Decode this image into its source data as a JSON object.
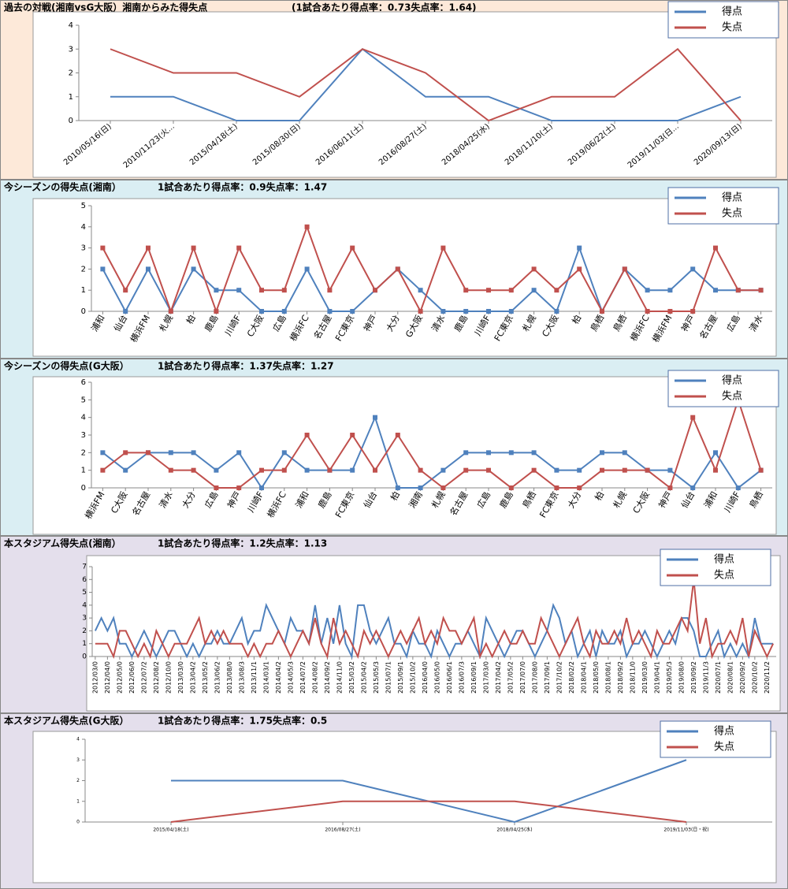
{
  "chart_data": [
    {
      "type": "line",
      "title": "過去の対戦(湘南vsG大阪）湘南からみた得失点",
      "subtitle": "(1試合あたり得点率：0.73失点率：1.64)",
      "categories": [
        "2010/05/16(日)",
        "2010/11/23(火...",
        "2015/04/18(土)",
        "2015/08/30(日)",
        "2016/06/11(土)",
        "2016/08/27(土)",
        "2018/04/25(水)",
        "2018/11/10(土)",
        "2019/06/22(土)",
        "2019/11/03(日...",
        "2020/09/13(日)"
      ],
      "series": [
        {
          "name": "得点",
          "color": "#4f81bd",
          "values": [
            1,
            1,
            0,
            0,
            3,
            1,
            1,
            0,
            0,
            0,
            1
          ]
        },
        {
          "name": "失点",
          "color": "#c0504d",
          "values": [
            3,
            2,
            2,
            1,
            3,
            2,
            0,
            1,
            1,
            3,
            0
          ]
        }
      ],
      "ylim": [
        0,
        4
      ],
      "yticks": [
        0,
        1,
        2,
        3,
        4
      ],
      "grid": false,
      "markers": false,
      "legend": "top-right"
    },
    {
      "type": "line",
      "title": "今シーズンの得失点(湘南）",
      "subtitle": "1試合あたり得点率：0.9失点率：1.47",
      "categories": [
        "浦和",
        "仙台",
        "横浜FM",
        "札幌",
        "柏",
        "鹿島",
        "川崎F",
        "C大阪",
        "広島",
        "横浜FC",
        "名古屋",
        "FC東京",
        "神戸",
        "大分",
        "G大阪",
        "清水",
        "鹿島",
        "川崎F",
        "FC東京",
        "札幌",
        "C大阪",
        "柏",
        "鳥栖",
        "鳥栖",
        "横浜FC",
        "横浜FM",
        "神戸",
        "名古屋",
        "広島",
        "清水"
      ],
      "series": [
        {
          "name": "得点",
          "color": "#4f81bd",
          "values": [
            2,
            0,
            2,
            0,
            2,
            1,
            1,
            0,
            0,
            2,
            0,
            0,
            1,
            2,
            1,
            0,
            0,
            0,
            0,
            1,
            0,
            3,
            0,
            2,
            1,
            1,
            2,
            1,
            1,
            1
          ]
        },
        {
          "name": "失点",
          "color": "#c0504d",
          "values": [
            3,
            1,
            3,
            0,
            3,
            0,
            3,
            1,
            1,
            4,
            1,
            3,
            1,
            2,
            0,
            3,
            1,
            1,
            1,
            2,
            1,
            2,
            0,
            2,
            0,
            0,
            0,
            3,
            1,
            1
          ]
        }
      ],
      "ylim": [
        0,
        5
      ],
      "yticks": [
        0,
        1,
        2,
        3,
        4,
        5
      ],
      "grid": false,
      "markers": true,
      "legend": "top-right"
    },
    {
      "type": "line",
      "title": "今シーズンの得失点(G大阪）",
      "subtitle": "1試合あたり得点率：1.37失点率：1.27",
      "categories": [
        "横浜FM",
        "C大阪",
        "名古屋",
        "清水",
        "大分",
        "広島",
        "神戸",
        "川崎F",
        "横浜FC",
        "浦和",
        "鹿島",
        "FC東京",
        "仙台",
        "柏",
        "湘南",
        "札幌",
        "名古屋",
        "広島",
        "鹿島",
        "鳥栖",
        "FC東京",
        "大分",
        "柏",
        "札幌",
        "C大阪",
        "神戸",
        "仙台",
        "浦和",
        "川崎F",
        "鳥栖"
      ],
      "series": [
        {
          "name": "得点",
          "color": "#4f81bd",
          "values": [
            2,
            1,
            2,
            2,
            2,
            1,
            2,
            0,
            2,
            1,
            1,
            1,
            4,
            0,
            0,
            1,
            2,
            2,
            2,
            2,
            1,
            1,
            2,
            2,
            1,
            1,
            0,
            2,
            0,
            1
          ]
        },
        {
          "name": "失点",
          "color": "#c0504d",
          "values": [
            1,
            2,
            2,
            1,
            1,
            0,
            0,
            1,
            1,
            3,
            1,
            3,
            1,
            3,
            1,
            0,
            1,
            1,
            0,
            1,
            0,
            0,
            1,
            1,
            1,
            0,
            4,
            1,
            5,
            1
          ]
        }
      ],
      "ylim": [
        0,
        6
      ],
      "yticks": [
        0,
        1,
        2,
        3,
        4,
        5,
        6
      ],
      "grid": false,
      "markers": true,
      "legend": "top-right"
    },
    {
      "type": "line",
      "title": "本スタジアム得失点(湘南）",
      "subtitle": "1試合あたり得点率：1.2失点率：1.13",
      "categories": [
        "2012/03/0",
        null,
        "2012/04/0",
        null,
        "2012/05/0",
        null,
        "2012/06/0",
        null,
        "2012/07/2",
        null,
        "2012/08/2",
        null,
        "2012/10/0",
        null,
        "2013/03/0",
        null,
        "2013/04/2",
        null,
        "2013/05/2",
        null,
        "2013/06/2",
        null,
        "2013/08/0",
        null,
        "2013/08/3",
        null,
        "2013/11/1",
        null,
        "2014/03/1",
        null,
        "2014/04/2",
        null,
        "2014/05/3",
        null,
        "2014/07/2",
        null,
        "2014/08/2",
        null,
        "2014/09/2",
        null,
        "2014/11/0",
        null,
        "2015/03/2",
        null,
        "2015/04/2",
        null,
        "2015/05/3",
        null,
        "2015/07/1",
        null,
        "2015/09/1",
        null,
        "2015/10/2",
        null,
        "2016/04/0",
        null,
        "2016/05/0",
        null,
        "2016/06/1",
        null,
        "2016/07/3",
        null,
        "2016/09/1",
        null,
        "2017/03/0",
        null,
        "2017/04/2",
        null,
        "2017/05/2",
        null,
        "2017/07/0",
        null,
        "2017/08/0",
        null,
        "2017/09/1",
        null,
        "2017/10/2",
        null,
        "2018/02/2",
        null,
        "2018/04/1",
        null,
        "2018/05/0",
        null,
        "2018/08/1",
        null,
        "2018/09/2",
        null,
        "2018/11/0",
        null,
        "2019/03/0",
        null,
        "2019/04/1",
        null,
        "2019/05/3",
        null,
        "2019/08/0",
        null,
        "2019/09/2",
        null,
        "2019/11/3",
        null,
        "2020/07/1",
        null,
        "2020/08/1",
        null,
        "2020/09/2",
        null,
        "2020/10/2",
        null,
        "2020/11/2",
        null
      ],
      "series": [
        {
          "name": "得点",
          "color": "#4f81bd",
          "values": [
            2,
            3,
            2,
            3,
            1,
            1,
            0,
            1,
            2,
            1,
            0,
            1,
            2,
            2,
            1,
            0,
            1,
            0,
            1,
            1,
            2,
            1,
            1,
            2,
            3,
            1,
            2,
            2,
            4,
            3,
            2,
            1,
            3,
            2,
            2,
            1,
            4,
            1,
            3,
            1,
            4,
            1,
            0,
            4,
            4,
            2,
            1,
            2,
            3,
            1,
            1,
            0,
            2,
            1,
            1,
            0,
            2,
            1,
            0,
            1,
            1,
            2,
            1,
            0,
            3,
            2,
            1,
            0,
            1,
            2,
            2,
            1,
            0,
            1,
            2,
            4,
            3,
            1,
            2,
            0,
            1,
            2,
            0,
            2,
            1,
            1,
            2,
            0,
            1,
            1,
            2,
            1,
            0,
            1,
            2,
            1,
            3,
            3,
            2,
            0,
            0,
            1,
            2,
            0,
            1,
            0,
            1,
            0,
            3,
            1,
            1,
            1
          ]
        },
        {
          "name": "失点",
          "color": "#c0504d",
          "values": [
            1,
            1,
            1,
            0,
            2,
            2,
            1,
            0,
            1,
            0,
            2,
            1,
            0,
            1,
            1,
            1,
            2,
            3,
            1,
            2,
            1,
            2,
            1,
            1,
            1,
            0,
            1,
            0,
            1,
            1,
            2,
            1,
            0,
            1,
            2,
            1,
            3,
            1,
            0,
            3,
            1,
            2,
            1,
            0,
            2,
            1,
            2,
            1,
            0,
            1,
            2,
            1,
            2,
            3,
            1,
            2,
            1,
            3,
            2,
            2,
            1,
            2,
            3,
            0,
            1,
            0,
            1,
            2,
            1,
            1,
            2,
            1,
            1,
            3,
            2,
            1,
            0,
            1,
            2,
            3,
            1,
            0,
            2,
            1,
            1,
            2,
            1,
            3,
            1,
            2,
            1,
            0,
            2,
            1,
            1,
            2,
            3,
            2,
            6,
            1,
            3,
            0,
            1,
            1,
            2,
            1,
            3,
            0,
            2,
            1,
            0,
            1
          ]
        }
      ],
      "ylim": [
        0,
        7
      ],
      "yticks": [
        0,
        1,
        2,
        3,
        4,
        5,
        6,
        7
      ],
      "grid": false,
      "markers": false,
      "legend": "top-right"
    },
    {
      "type": "line",
      "title": "本スタジアム得失点(G大阪）",
      "subtitle": "1試合あたり得点率：1.75失点率：0.5",
      "categories": [
        "2015/04/18(土)",
        "2016/08/27(土)",
        "2018/04/25(水)",
        "2019/11/03(日・祝)"
      ],
      "series": [
        {
          "name": "得点",
          "color": "#4f81bd",
          "values": [
            2,
            2,
            0,
            3
          ]
        },
        {
          "name": "失点",
          "color": "#c0504d",
          "values": [
            0,
            1,
            1,
            0
          ]
        }
      ],
      "ylim": [
        0,
        4
      ],
      "yticks": [
        0,
        1,
        2,
        3,
        4
      ],
      "grid": false,
      "markers": false,
      "legend": "top-right"
    }
  ]
}
